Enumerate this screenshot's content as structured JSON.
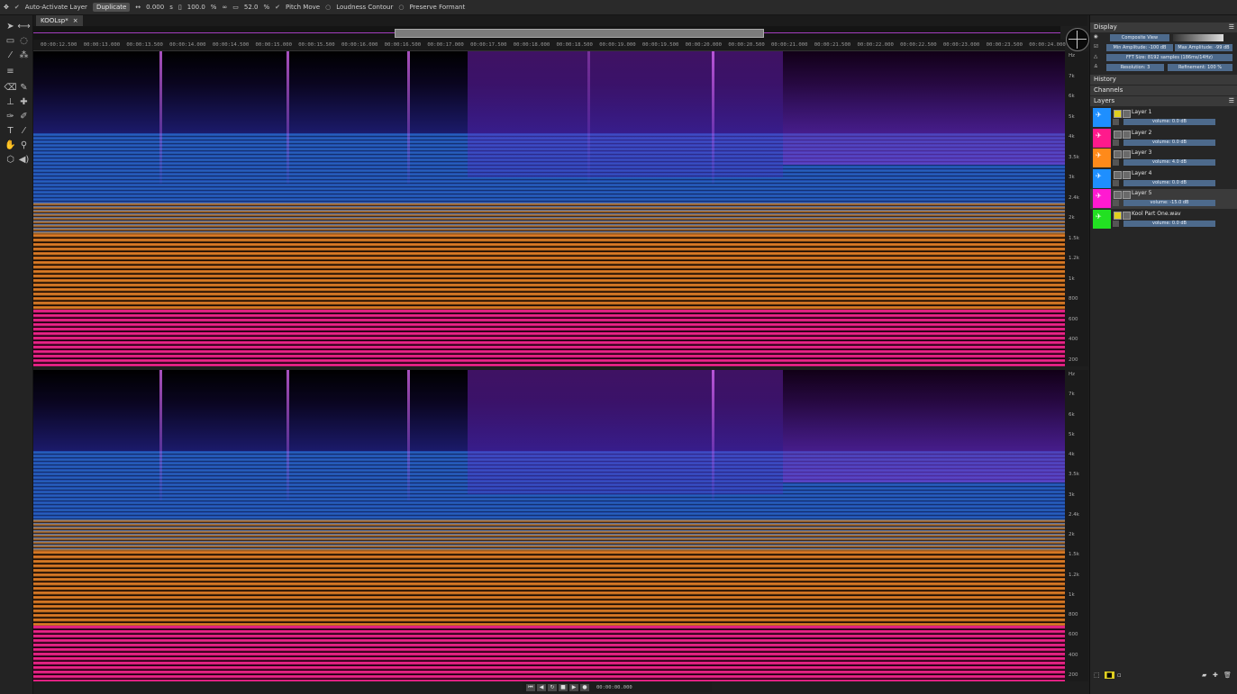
{
  "options_bar": {
    "auto_activate": "Auto-Activate Layer",
    "duplicate": "Duplicate",
    "offset": "0.000",
    "offset_unit": "s",
    "gain": "100.0",
    "gain_unit": "%",
    "pitch_value": "52.0",
    "pitch_unit": "%",
    "pitch_move": "Pitch Move",
    "loudness": "Loudness Contour",
    "formant": "Preserve Formant"
  },
  "document_tab": {
    "title": "KOOLsp*",
    "close": "×"
  },
  "ruler": {
    "ticks": [
      "00:00:12.500",
      "00:00:13.000",
      "00:00:13.500",
      "00:00:14.000",
      "00:00:14.500",
      "00:00:15.000",
      "00:00:15.500",
      "00:00:16.000",
      "00:00:16.500",
      "00:00:17.000",
      "00:00:17.500",
      "00:00:18.000",
      "00:00:18.500",
      "00:00:19.000",
      "00:00:19.500",
      "00:00:20.000",
      "00:00:20.500",
      "00:00:21.000",
      "00:00:21.500",
      "00:00:22.000",
      "00:00:22.500",
      "00:00:23.000",
      "00:00:23.500",
      "00:00:24.000"
    ]
  },
  "freq_axis": {
    "labels": [
      "Hz",
      "7k",
      "6k",
      "5k",
      "4k",
      "3.5k",
      "3k",
      "2.4k",
      "2k",
      "1.5k",
      "1.2k",
      "1k",
      "800",
      "600",
      "400",
      "200"
    ]
  },
  "panel": {
    "display": {
      "title": "Display",
      "view_mode": "Composite View",
      "min_amplitude": "Min Amplitude: -100 dB",
      "max_amplitude": "Max Amplitude: -99 dB",
      "fft": "FFT Size: 8192 samples (186ms/14Hz)",
      "resolution": "Resolution: 3",
      "refinement": "Refinement: 100 %"
    },
    "history": "History",
    "channels": "Channels",
    "layers": {
      "title": "Layers",
      "items": [
        {
          "name": "Layer 1",
          "volume": "volume: 0.0 dB",
          "color": "#1e8fff"
        },
        {
          "name": "Layer 2",
          "volume": "volume: 0.0 dB",
          "color": "#ff1a8c"
        },
        {
          "name": "Layer 3",
          "volume": "volume: 4.0 dB",
          "color": "#ff8a1a"
        },
        {
          "name": "Layer 4",
          "volume": "volume: 0.0 dB",
          "color": "#1e8fff"
        },
        {
          "name": "Layer 5",
          "volume": "volume: -15.0 dB",
          "color": "#ff1ad1"
        },
        {
          "name": "Kool Part One.wav",
          "volume": "volume: 0.0 dB",
          "color": "#22e022"
        }
      ]
    }
  },
  "transport": {
    "timecode": "00:00:00.000"
  }
}
